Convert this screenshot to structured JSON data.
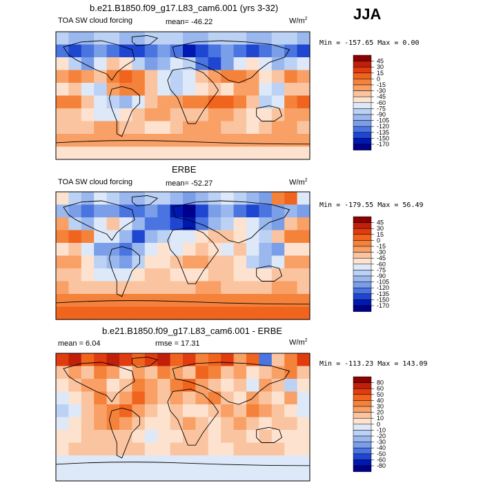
{
  "season": "JJA",
  "chart_data": [
    {
      "type": "heatmap",
      "title": "b.e21.B1850.f09_g17.L83_cam6.001 (yrs 3-32)",
      "variable": "TOA SW cloud forcing",
      "stat_text": "mean= -46.22",
      "units_base": "W/m",
      "units_exp": "2",
      "minmax_text": "Min = -157.65 Max =    0.00",
      "levels": [
        "45",
        "30",
        "15",
        "0",
        "-15",
        "-30",
        "-45",
        "-60",
        "-75",
        "-90",
        "-105",
        "-120",
        "-135",
        "-150",
        "-170"
      ],
      "colors": [
        "#8b0000",
        "#c0200a",
        "#e03c10",
        "#f0641e",
        "#f5823a",
        "#f8a066",
        "#fbc4a0",
        "#fde2d0",
        "#dde8f8",
        "#bcd2f4",
        "#9ab8ee",
        "#7a9ee8",
        "#4a74e0",
        "#1e46d0",
        "#0018b0",
        "#00008a"
      ],
      "field_grid": [
        [
          9,
          10,
          10,
          9,
          9,
          10,
          10,
          9,
          9,
          9,
          10,
          10,
          9,
          9,
          9,
          10,
          10,
          9,
          9,
          10
        ],
        [
          12,
          13,
          12,
          11,
          12,
          13,
          13,
          12,
          11,
          12,
          14,
          13,
          12,
          11,
          12,
          13,
          12,
          11,
          12,
          13
        ],
        [
          7,
          9,
          11,
          8,
          6,
          7,
          9,
          11,
          10,
          8,
          9,
          12,
          13,
          11,
          8,
          7,
          8,
          10,
          9,
          8
        ],
        [
          5,
          4,
          5,
          6,
          4,
          3,
          4,
          6,
          8,
          9,
          8,
          6,
          5,
          4,
          4,
          5,
          7,
          6,
          4,
          5
        ],
        [
          7,
          6,
          8,
          9,
          5,
          4,
          4,
          6,
          8,
          9,
          8,
          7,
          6,
          7,
          5,
          5,
          8,
          9,
          6,
          6
        ],
        [
          4,
          4,
          6,
          8,
          9,
          10,
          8,
          6,
          5,
          5,
          4,
          4,
          3,
          3,
          4,
          6,
          9,
          8,
          4,
          3
        ],
        [
          6,
          6,
          7,
          8,
          8,
          7,
          6,
          5,
          5,
          6,
          6,
          6,
          5,
          5,
          6,
          7,
          7,
          6,
          5,
          5
        ],
        [
          6,
          6,
          6,
          5,
          5,
          6,
          6,
          7,
          7,
          6,
          5,
          5,
          5,
          6,
          6,
          7,
          6,
          5,
          5,
          6
        ],
        [
          5,
          5,
          5,
          5,
          5,
          5,
          5,
          5,
          5,
          5,
          5,
          5,
          5,
          5,
          5,
          5,
          5,
          5,
          5,
          5
        ],
        [
          7,
          7,
          7,
          7,
          7,
          7,
          7,
          7,
          7,
          7,
          7,
          7,
          7,
          7,
          7,
          7,
          7,
          7,
          7,
          7
        ]
      ]
    },
    {
      "type": "heatmap",
      "title": "ERBE",
      "variable": "TOA SW cloud forcing",
      "stat_text": "mean= -52.27",
      "units_base": "W/m",
      "units_exp": "2",
      "minmax_text": "Min = -179.55 Max =  56.49",
      "levels": [
        "45",
        "30",
        "15",
        "0",
        "-15",
        "-30",
        "-45",
        "-60",
        "-75",
        "-90",
        "-105",
        "-120",
        "-135",
        "-150",
        "-170"
      ],
      "colors": [
        "#8b0000",
        "#c0200a",
        "#e03c10",
        "#f0641e",
        "#f5823a",
        "#f8a066",
        "#fbc4a0",
        "#fde2d0",
        "#dde8f8",
        "#bcd2f4",
        "#9ab8ee",
        "#7a9ee8",
        "#4a74e0",
        "#1e46d0",
        "#0018b0",
        "#00008a"
      ],
      "field_grid": [
        [
          7,
          9,
          10,
          8,
          9,
          10,
          10,
          9,
          9,
          10,
          11,
          10,
          9,
          8,
          9,
          10,
          11,
          4,
          3,
          8
        ],
        [
          10,
          11,
          12,
          11,
          11,
          12,
          12,
          11,
          12,
          14,
          15,
          13,
          11,
          10,
          12,
          13,
          12,
          11,
          10,
          11
        ],
        [
          5,
          9,
          10,
          8,
          6,
          8,
          10,
          12,
          12,
          13,
          14,
          12,
          10,
          9,
          7,
          8,
          10,
          11,
          6,
          5
        ],
        [
          4,
          3,
          4,
          8,
          8,
          10,
          13,
          10,
          9,
          8,
          8,
          7,
          6,
          6,
          7,
          8,
          9,
          6,
          4,
          4
        ],
        [
          7,
          6,
          8,
          11,
          11,
          12,
          10,
          8,
          7,
          8,
          7,
          6,
          7,
          8,
          6,
          8,
          10,
          11,
          7,
          7
        ],
        [
          5,
          5,
          7,
          9,
          10,
          11,
          9,
          7,
          7,
          6,
          5,
          5,
          6,
          6,
          7,
          9,
          10,
          8,
          5,
          5
        ],
        [
          6,
          6,
          7,
          8,
          8,
          8,
          7,
          6,
          6,
          7,
          7,
          7,
          6,
          6,
          7,
          7,
          7,
          6,
          6,
          6
        ],
        [
          5,
          6,
          6,
          6,
          6,
          6,
          6,
          6,
          6,
          6,
          6,
          5,
          5,
          6,
          6,
          6,
          6,
          5,
          5,
          6
        ],
        [
          4,
          4,
          4,
          4,
          4,
          4,
          4,
          4,
          4,
          4,
          4,
          4,
          4,
          4,
          4,
          4,
          4,
          4,
          4,
          4
        ],
        [
          3,
          3,
          3,
          3,
          3,
          3,
          3,
          3,
          3,
          3,
          3,
          3,
          3,
          3,
          3,
          3,
          3,
          3,
          3,
          3
        ]
      ]
    },
    {
      "type": "heatmap",
      "title": "b.e21.B1850.f09_g17.L83_cam6.001 - ERBE",
      "variable": "",
      "stat_text": "mean =    6.04",
      "rmse_text": "rmse =   17.31",
      "units_base": "W/m",
      "units_exp": "2",
      "minmax_text": "Min = -113.23 Max = 143.09",
      "levels": [
        "80",
        "60",
        "50",
        "40",
        "30",
        "20",
        "10",
        "0",
        "-10",
        "-20",
        "-30",
        "-40",
        "-50",
        "-60",
        "-80"
      ],
      "colors": [
        "#8b0000",
        "#c0200a",
        "#e03c10",
        "#f0641e",
        "#f5823a",
        "#f8a066",
        "#fbc4a0",
        "#fde2d0",
        "#dde8f8",
        "#bcd2f4",
        "#9ab8ee",
        "#7a9ee8",
        "#4a74e0",
        "#1e46d0",
        "#0018b0",
        "#00008a"
      ],
      "field_grid": [
        [
          2,
          1,
          3,
          2,
          1,
          2,
          3,
          2,
          1,
          3,
          2,
          4,
          3,
          2,
          5,
          3,
          12,
          6,
          4,
          2
        ],
        [
          6,
          5,
          6,
          4,
          5,
          7,
          5,
          6,
          4,
          5,
          6,
          3,
          4,
          6,
          5,
          7,
          6,
          5,
          4,
          6
        ],
        [
          7,
          6,
          5,
          5,
          7,
          6,
          4,
          5,
          6,
          4,
          3,
          5,
          6,
          7,
          6,
          8,
          5,
          6,
          9,
          7
        ],
        [
          8,
          7,
          6,
          4,
          6,
          5,
          3,
          5,
          6,
          5,
          6,
          5,
          4,
          6,
          7,
          5,
          6,
          7,
          5,
          8
        ],
        [
          9,
          8,
          6,
          5,
          4,
          3,
          5,
          6,
          7,
          6,
          7,
          7,
          6,
          5,
          6,
          4,
          5,
          6,
          7,
          8
        ],
        [
          8,
          7,
          6,
          5,
          4,
          5,
          6,
          7,
          7,
          6,
          5,
          6,
          7,
          6,
          5,
          6,
          7,
          6,
          6,
          7
        ],
        [
          7,
          7,
          6,
          6,
          6,
          6,
          7,
          8,
          7,
          7,
          6,
          6,
          7,
          6,
          6,
          7,
          6,
          7,
          7,
          7
        ],
        [
          7,
          6,
          6,
          6,
          6,
          6,
          6,
          7,
          7,
          6,
          6,
          6,
          7,
          7,
          6,
          6,
          6,
          6,
          7,
          7
        ],
        [
          8,
          8,
          8,
          8,
          8,
          8,
          8,
          8,
          8,
          8,
          8,
          8,
          8,
          8,
          8,
          8,
          8,
          8,
          8,
          8
        ],
        [
          8,
          8,
          8,
          8,
          8,
          8,
          8,
          8,
          8,
          8,
          8,
          8,
          8,
          8,
          8,
          8,
          8,
          8,
          8,
          8
        ]
      ]
    }
  ]
}
